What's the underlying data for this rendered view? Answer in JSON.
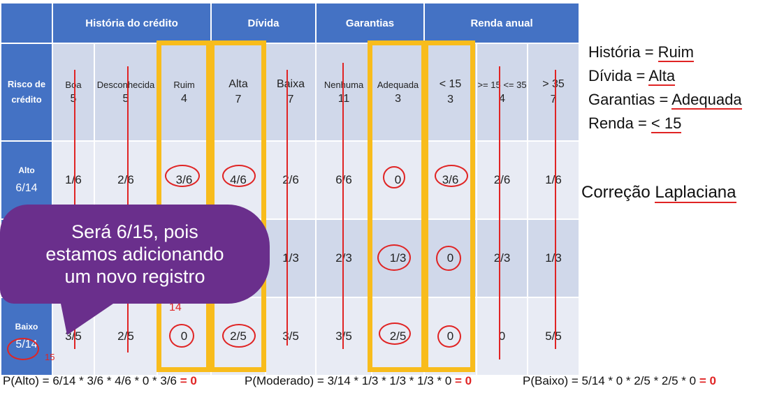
{
  "table": {
    "groups": [
      "História do crédito",
      "Dívida",
      "Garantias",
      "Renda anual"
    ],
    "risk_header": "Risco de crédito",
    "attributes": [
      {
        "name": "Boa",
        "count": "5"
      },
      {
        "name": "Desconhecida",
        "count": "5"
      },
      {
        "name": "Ruim",
        "count": "4"
      },
      {
        "name": "Alta",
        "count": "7"
      },
      {
        "name": "Baixa",
        "count": "7"
      },
      {
        "name": "Nenhuma",
        "count": "11"
      },
      {
        "name": "Adequada",
        "count": "3"
      },
      {
        "name": "< 15",
        "count": "3"
      },
      {
        "name": ">= 15 <= 35",
        "count": "4"
      },
      {
        "name": "> 35",
        "count": "7"
      }
    ],
    "rows": [
      {
        "label": "Alto",
        "prior": "6/14",
        "cells": [
          "1/6",
          "2/6",
          "3/6",
          "4/6",
          "2/6",
          "6/6",
          "0",
          "3/6",
          "2/6",
          "1/6"
        ]
      },
      {
        "label": "",
        "prior": "",
        "cells": [
          "",
          "",
          "",
          "",
          "1/3",
          "2/3",
          "1/3",
          "0",
          "2/3",
          "1/3"
        ]
      },
      {
        "label": "Baixo",
        "prior": "5/14",
        "cells": [
          "3/5",
          "2/5",
          "0",
          "2/5",
          "3/5",
          "3/5",
          "2/5",
          "0",
          "0",
          "5/5"
        ]
      }
    ],
    "annot_15": "15",
    "annot_14": "14"
  },
  "query": [
    {
      "key": "História",
      "value": "Ruim"
    },
    {
      "key": "Dívida",
      "value": "Alta"
    },
    {
      "key": "Garantias",
      "value": "Adequada"
    },
    {
      "key": "Renda",
      "value": "< 15"
    }
  ],
  "laplace": {
    "pre": "Correção",
    "word": "Laplaciana"
  },
  "bubble": {
    "line1": "Será 6/15, pois",
    "line2": "estamos adicionando",
    "line3": "um novo registro"
  },
  "formulas": {
    "alto": "P(Alto) = 6/14 * 3/6 * 4/6 * 0 * 3/6",
    "moderado": "P(Moderado) = 3/14 * 1/3 * 1/3 * 1/3 * 0",
    "baixo": "P(Baixo) = 5/14 * 0 * 2/5 * 2/5 * 0",
    "result": "= 0"
  },
  "colors": {
    "header": "#4472c4",
    "highlight": "#f8bc1c",
    "ink": "#e02424",
    "bubble": "#6a2f8c"
  }
}
